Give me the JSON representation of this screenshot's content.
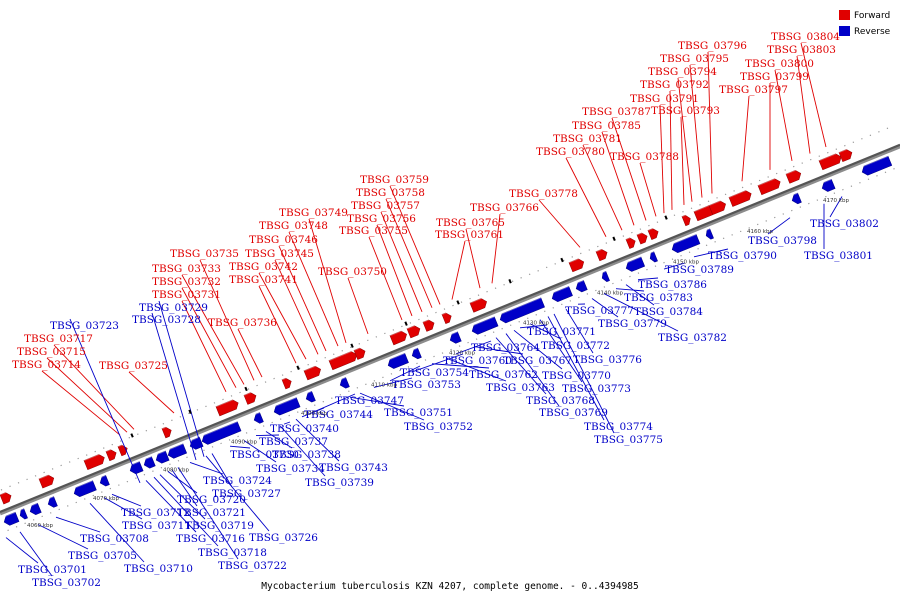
{
  "title": "Mycobacterium tuberculosis KZN 4207, complete genome. - 0..4394985",
  "legend": [
    {
      "label": "Forward",
      "color": "#e00000"
    },
    {
      "label": "Reverse",
      "color": "#0000c8"
    }
  ],
  "colors": {
    "forward": "#e00000",
    "reverse": "#0000c8",
    "axis": "#555555"
  },
  "ticks": [
    "4060 kbp",
    "4070 kbp",
    "4080 kbp",
    "4090 kbp",
    "4100 kbp",
    "4110 kbp",
    "4120 kbp",
    "4130 kbp",
    "4140 kbp",
    "4150 kbp",
    "4160 kbp",
    "4170 kbp"
  ],
  "genes_forward": [
    "TBSG_03714",
    "TBSG_03715",
    "TBSG_03717",
    "TBSG_03725",
    "TBSG_03731",
    "TBSG_03732",
    "TBSG_03733",
    "TBSG_03735",
    "TBSG_03736",
    "TBSG_03741",
    "TBSG_03742",
    "TBSG_03745",
    "TBSG_03746",
    "TBSG_03748",
    "TBSG_03749",
    "TBSG_03750",
    "TBSG_03755",
    "TBSG_03756",
    "TBSG_03757",
    "TBSG_03758",
    "TBSG_03759",
    "TBSG_03761",
    "TBSG_03765",
    "TBSG_03766",
    "TBSG_03778",
    "TBSG_03780",
    "TBSG_03781",
    "TBSG_03785",
    "TBSG_03787",
    "TBSG_03788",
    "TBSG_03791",
    "TBSG_03792",
    "TBSG_03793",
    "TBSG_03794",
    "TBSG_03795",
    "TBSG_03796",
    "TBSG_03797",
    "TBSG_03799",
    "TBSG_03800",
    "TBSG_03803",
    "TBSG_03804"
  ],
  "genes_reverse": [
    "TBSG_03701",
    "TBSG_03702",
    "TBSG_03705",
    "TBSG_03708",
    "TBSG_03710",
    "TBSG_03711",
    "TBSG_03712",
    "TBSG_03716",
    "TBSG_03718",
    "TBSG_03719",
    "TBSG_03720",
    "TBSG_03721",
    "TBSG_03722",
    "TBSG_03723",
    "TBSG_03724",
    "TBSG_03726",
    "TBSG_03727",
    "TBSG_03728",
    "TBSG_03729",
    "TBSG_03730",
    "TBSG_03734",
    "TBSG_03737",
    "TBSG_03738",
    "TBSG_03739",
    "TBSG_03740",
    "TBSG_03743",
    "TBSG_03744",
    "TBSG_03747",
    "TBSG_03751",
    "TBSG_03752",
    "TBSG_03753",
    "TBSG_03754",
    "TBSG_03760",
    "TBSG_03762",
    "TBSG_03763",
    "TBSG_03764",
    "TBSG_03767",
    "TBSG_03768",
    "TBSG_03769",
    "TBSG_03770",
    "TBSG_03771",
    "TBSG_03772",
    "TBSG_03773",
    "TBSG_03774",
    "TBSG_03775",
    "TBSG_03776",
    "TBSG_03777",
    "TBSG_03779",
    "TBSG_03782",
    "TBSG_03783",
    "TBSG_03784",
    "TBSG_03786",
    "TBSG_03789",
    "TBSG_03790",
    "TBSG_03798",
    "TBSG_03801",
    "TBSG_03802"
  ]
}
